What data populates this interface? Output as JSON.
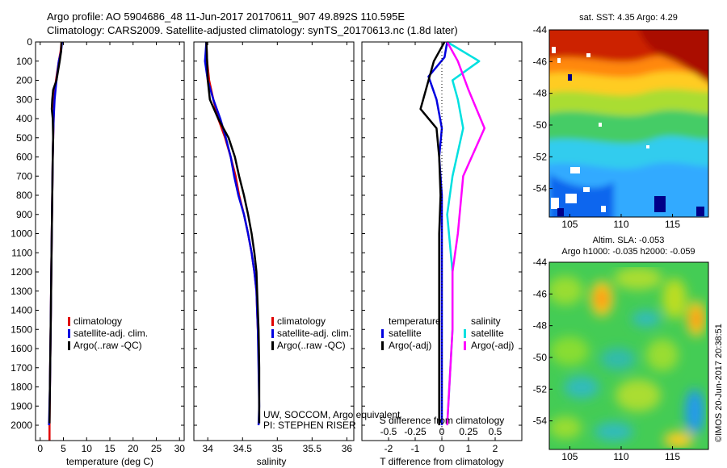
{
  "header": {
    "line1": "Argo profile: AO 5904686_48 11-Jun-2017 20170611_907 49.892S 110.595E",
    "line2": "Climatology: CARS2009. Satellite-adjusted climatology: synTS_20170613.nc (1.8d later)"
  },
  "colors": {
    "climatology": "#e00000",
    "satellite": "#0000e0",
    "argo": "#000000",
    "sal_satellite": "#00e0e0",
    "sal_argo": "#ff00ff"
  },
  "chart_data": [
    {
      "type": "line",
      "title": "",
      "xlabel": "temperature (deg C)",
      "ylabel": "",
      "xlim": [
        -1,
        31
      ],
      "ylim": [
        2080,
        0
      ],
      "xticks": [
        "0",
        "5",
        "10",
        "15",
        "20",
        "25",
        "30"
      ],
      "yticks": [
        "0",
        "100",
        "200",
        "300",
        "400",
        "500",
        "600",
        "700",
        "800",
        "900",
        "1000",
        "1100",
        "1200",
        "1300",
        "1400",
        "1500",
        "1600",
        "1700",
        "1800",
        "1900",
        "2000"
      ],
      "legend": [
        "climatology",
        "satellite-adj. clim.",
        "Argo(..raw -QC)"
      ],
      "legend_position": "lower-center",
      "series": [
        {
          "name": "climatology",
          "color": "#e00000",
          "points": [
            [
              4.6,
              0
            ],
            [
              4.4,
              50
            ],
            [
              4.0,
              100
            ],
            [
              3.4,
              200
            ],
            [
              3.0,
              300
            ],
            [
              2.9,
              400
            ],
            [
              2.8,
              500
            ],
            [
              2.7,
              600
            ],
            [
              2.6,
              800
            ],
            [
              2.5,
              1000
            ],
            [
              2.4,
              1200
            ],
            [
              2.3,
              1400
            ],
            [
              2.2,
              1600
            ],
            [
              2.1,
              1800
            ],
            [
              2.0,
              2000
            ],
            [
              2.0,
              2080
            ]
          ]
        },
        {
          "name": "satellite-adj. clim.",
          "color": "#0000e0",
          "points": [
            [
              4.7,
              0
            ],
            [
              4.5,
              50
            ],
            [
              4.0,
              100
            ],
            [
              3.5,
              200
            ],
            [
              3.1,
              300
            ],
            [
              2.9,
              400
            ],
            [
              2.8,
              500
            ],
            [
              2.7,
              600
            ],
            [
              2.6,
              800
            ],
            [
              2.5,
              1000
            ],
            [
              2.4,
              1200
            ],
            [
              2.3,
              1400
            ],
            [
              2.2,
              1600
            ],
            [
              2.1,
              1800
            ],
            [
              1.9,
              2000
            ]
          ]
        },
        {
          "name": "Argo(..raw -QC)",
          "color": "#000000",
          "points": [
            [
              4.6,
              0
            ],
            [
              4.5,
              50
            ],
            [
              4.2,
              100
            ],
            [
              3.5,
              200
            ],
            [
              2.8,
              250
            ],
            [
              2.6,
              300
            ],
            [
              2.5,
              350
            ],
            [
              2.7,
              400
            ],
            [
              2.8,
              500
            ],
            [
              2.7,
              600
            ],
            [
              2.6,
              800
            ],
            [
              2.5,
              1000
            ],
            [
              2.4,
              1200
            ],
            [
              2.3,
              1400
            ],
            [
              2.2,
              1600
            ],
            [
              2.1,
              1800
            ],
            [
              2.0,
              1990
            ]
          ]
        }
      ]
    },
    {
      "type": "line",
      "title": "",
      "xlabel": "salinity",
      "ylabel": "",
      "xlim": [
        33.8,
        36.1
      ],
      "ylim": [
        2080,
        0
      ],
      "xticks": [
        "34",
        "34.5",
        "35",
        "35.5",
        "36"
      ],
      "legend": [
        "climatology",
        "satellite-adj. clim.",
        "Argo(..raw -QC)"
      ],
      "legend_position": "lower-right",
      "annotation": [
        "UW, SOCCOM, Argo equivalent",
        "PI: STEPHEN RISER"
      ],
      "series": [
        {
          "name": "climatology",
          "color": "#e00000",
          "points": [
            [
              33.98,
              0
            ],
            [
              33.99,
              100
            ],
            [
              34.02,
              200
            ],
            [
              34.08,
              300
            ],
            [
              34.15,
              400
            ],
            [
              34.25,
              500
            ],
            [
              34.33,
              600
            ],
            [
              34.4,
              700
            ],
            [
              34.45,
              800
            ],
            [
              34.52,
              900
            ],
            [
              34.58,
              1000
            ],
            [
              34.63,
              1100
            ],
            [
              34.67,
              1200
            ],
            [
              34.7,
              1300
            ],
            [
              34.71,
              1400
            ],
            [
              34.72,
              1500
            ],
            [
              34.73,
              1600
            ]
          ]
        },
        {
          "name": "satellite-adj. clim.",
          "color": "#0000e0",
          "points": [
            [
              33.98,
              0
            ],
            [
              33.96,
              100
            ],
            [
              34.0,
              200
            ],
            [
              34.08,
              300
            ],
            [
              34.18,
              400
            ],
            [
              34.26,
              500
            ],
            [
              34.33,
              600
            ],
            [
              34.38,
              700
            ],
            [
              34.44,
              800
            ],
            [
              34.52,
              900
            ],
            [
              34.58,
              1000
            ],
            [
              34.63,
              1100
            ],
            [
              34.67,
              1200
            ],
            [
              34.7,
              1300
            ],
            [
              34.71,
              1400
            ],
            [
              34.72,
              1500
            ],
            [
              34.73,
              1700
            ],
            [
              34.74,
              1900
            ],
            [
              34.73,
              2000
            ]
          ]
        },
        {
          "name": "Argo(..raw -QC)",
          "color": "#000000",
          "points": [
            [
              33.98,
              0
            ],
            [
              33.99,
              100
            ],
            [
              34.0,
              200
            ],
            [
              34.03,
              300
            ],
            [
              34.15,
              400
            ],
            [
              34.3,
              500
            ],
            [
              34.39,
              600
            ],
            [
              34.45,
              700
            ],
            [
              34.52,
              800
            ],
            [
              34.58,
              900
            ],
            [
              34.63,
              1000
            ],
            [
              34.67,
              1100
            ],
            [
              34.7,
              1200
            ],
            [
              34.71,
              1300
            ],
            [
              34.72,
              1400
            ],
            [
              34.73,
              1500
            ],
            [
              34.74,
              1700
            ],
            [
              34.74,
              1900
            ],
            [
              34.74,
              1990
            ]
          ]
        }
      ]
    },
    {
      "type": "line",
      "title": "",
      "xlabel": "T difference from climatology",
      "xlabel_secondary": "S difference from climatology",
      "ylabel": "",
      "xlim": [
        -3,
        3
      ],
      "ylim": [
        2080,
        0
      ],
      "xticks": [
        "-2",
        "-1",
        "0",
        "1",
        "2"
      ],
      "xticks_secondary": [
        "-0.5",
        "-0.25",
        "0",
        "0.25",
        "0.5"
      ],
      "legend": [
        "temperature",
        "satellite",
        "Argo(-adj)",
        "salinity",
        "satellite",
        "Argo(-adj)"
      ],
      "legend_position": "lower-center",
      "series": [
        {
          "name": "T satellite",
          "color": "#0000e0",
          "points": [
            [
              0.2,
              0
            ],
            [
              0.1,
              80
            ],
            [
              -0.5,
              180
            ],
            [
              -0.2,
              300
            ],
            [
              0,
              450
            ],
            [
              -0.1,
              600
            ],
            [
              0,
              800
            ],
            [
              0,
              1000
            ],
            [
              0,
              1500
            ],
            [
              0,
              2000
            ]
          ]
        },
        {
          "name": "T Argo(-adj)",
          "color": "#000000",
          "points": [
            [
              0.1,
              0
            ],
            [
              -0.3,
              100
            ],
            [
              -0.6,
              250
            ],
            [
              -0.8,
              350
            ],
            [
              -0.2,
              450
            ],
            [
              -0.1,
              600
            ],
            [
              -0.05,
              800
            ],
            [
              -0.1,
              1000
            ],
            [
              -0.1,
              1300
            ],
            [
              -0.1,
              1600
            ],
            [
              -0.1,
              1900
            ],
            [
              -0.1,
              2000
            ]
          ]
        },
        {
          "name": "S satellite",
          "color": "#00e0e0",
          "points": [
            [
              0.05,
              0
            ],
            [
              0.35,
              100
            ],
            [
              0.1,
              200
            ],
            [
              0.15,
              300
            ],
            [
              0.2,
              450
            ],
            [
              0.1,
              700
            ],
            [
              0.05,
              900
            ],
            [
              0.1,
              1200
            ],
            [
              0.1,
              1500
            ],
            [
              0.05,
              2000
            ]
          ]
        },
        {
          "name": "S Argo(-adj)",
          "color": "#ff00ff",
          "points": [
            [
              0.05,
              0
            ],
            [
              0.15,
              100
            ],
            [
              0.25,
              250
            ],
            [
              0.4,
              450
            ],
            [
              0.2,
              700
            ],
            [
              0.15,
              1000
            ],
            [
              0.1,
              1200
            ],
            [
              0.1,
              1500
            ],
            [
              0.05,
              2000
            ]
          ]
        }
      ]
    },
    {
      "type": "heatmap",
      "title": "sat. SST: 4.35 Argo: 4.29",
      "xlim": [
        103,
        118.5
      ],
      "ylim": [
        -55.8,
        -44
      ],
      "xticks": [
        "105",
        "110",
        "115"
      ],
      "yticks": [
        "-44",
        "-46",
        "-48",
        "-50",
        "-52",
        "-54"
      ]
    },
    {
      "type": "heatmap",
      "title": "Altim. SLA: -0.053",
      "subtitle": "Argo h1000: -0.035 h2000: -0.059",
      "xlim": [
        103,
        118.5
      ],
      "ylim": [
        -55.8,
        -44
      ],
      "xticks": [
        "105",
        "110",
        "115"
      ],
      "yticks": [
        "-44",
        "-46",
        "-48",
        "-50",
        "-52",
        "-54"
      ]
    }
  ],
  "watermark": "©IMOS 20-Jun-2017 20:38:51"
}
